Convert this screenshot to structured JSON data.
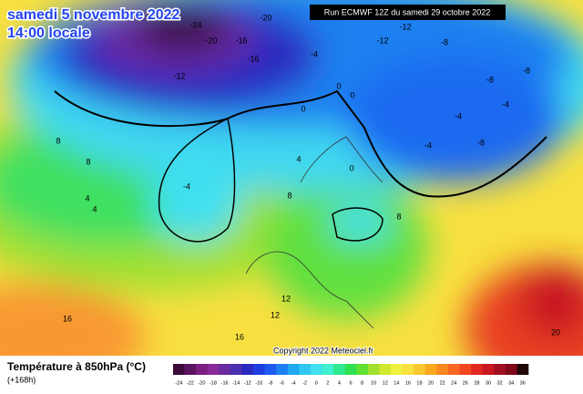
{
  "header": {
    "date": "samedi 5 novembre 2022",
    "time": "14:00 locale",
    "run": "Run ECMWF 12Z du samedi 29 octobre 2022"
  },
  "map_labels": [
    "-24",
    "-20",
    "-20",
    "-16",
    "-16",
    "-12",
    "-16",
    "-12",
    "-4",
    "-12",
    "-8",
    "-8",
    "-8",
    "-4",
    "-4",
    "-4",
    "-8",
    "0",
    "0",
    "0",
    "0",
    "-4",
    "8",
    "8",
    "4",
    "4",
    "4",
    "8",
    "8",
    "12",
    "12",
    "16",
    "16",
    "20"
  ],
  "copyright": "Copyright 2022 Meteociel.fr",
  "legend": {
    "title": "Température à 850hPa (°C)",
    "subtitle": "(+168h)",
    "ticks": [
      -24,
      -22,
      -20,
      -18,
      -16,
      -14,
      -12,
      -10,
      -8,
      -6,
      -4,
      -2,
      0,
      2,
      4,
      6,
      8,
      10,
      12,
      14,
      16,
      18,
      20,
      22,
      24,
      26,
      28,
      30,
      32,
      34,
      36
    ],
    "colors": [
      "#3a0a3a",
      "#5a1460",
      "#7a1e80",
      "#8a2a9a",
      "#6a2aa0",
      "#4a30b0",
      "#2a2ac0",
      "#1e3ee0",
      "#1e5af0",
      "#1e80f0",
      "#20a8f0",
      "#30c8f0",
      "#40e0f0",
      "#40f0d0",
      "#30e890",
      "#30e050",
      "#60e030",
      "#a0e030",
      "#d0e830",
      "#f0f040",
      "#f8e040",
      "#f8c830",
      "#f8a820",
      "#f88820",
      "#f86820",
      "#f04820",
      "#e02820",
      "#c81820",
      "#a01020",
      "#800818",
      "#200808"
    ]
  }
}
